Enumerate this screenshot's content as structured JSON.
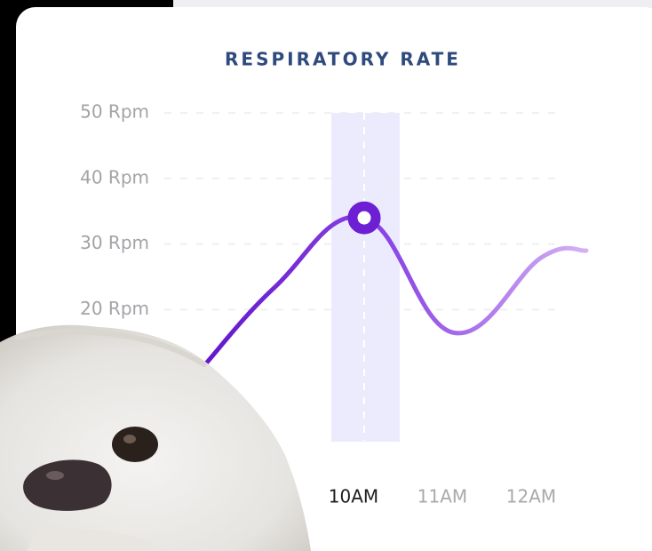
{
  "chart_data": {
    "type": "line",
    "title": "RESPIRATORY RATE",
    "x": [
      8.2,
      9,
      10,
      11,
      12,
      12.5
    ],
    "values": [
      11.5,
      23.5,
      34,
      16.5,
      28,
      29
    ],
    "color": "#6c1fd3",
    "xlim": [
      8.2,
      12.5
    ],
    "xticks": [
      {
        "value": 10,
        "label": "10AM"
      },
      {
        "value": 11,
        "label": "11AM"
      },
      {
        "value": 12,
        "label": "12AM"
      }
    ],
    "ylim": [
      0,
      50
    ],
    "yticks": [
      {
        "value": 20,
        "label": "20 Rpm"
      },
      {
        "value": 30,
        "label": "30 Rpm"
      },
      {
        "value": 40,
        "label": "40 Rpm"
      },
      {
        "value": 50,
        "label": "50 Rpm"
      }
    ],
    "grid": true,
    "highlight_x": 10
  }
}
